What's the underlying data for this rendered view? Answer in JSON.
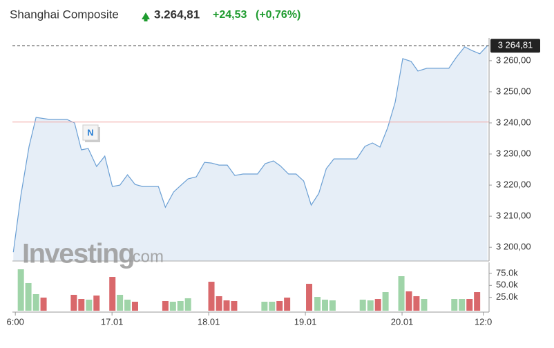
{
  "header": {
    "name": "Shanghai Composite",
    "price": "3.264,81",
    "change": "+24,53",
    "change_pct": "(+0,76%)"
  },
  "watermark": {
    "brand": "Investing",
    "suffix": ".com"
  },
  "chart_data": [
    {
      "type": "line",
      "annotation": "N",
      "xlim": [
        -0.03,
        4.9
      ],
      "ylim": [
        3195.6,
        3267.3
      ],
      "yticks": [
        {
          "value": 3200,
          "label": "3 200,00"
        },
        {
          "value": 3210,
          "label": "3 210,00"
        },
        {
          "value": 3220,
          "label": "3 220,00"
        },
        {
          "value": 3230,
          "label": "3 230,00"
        },
        {
          "value": 3240,
          "label": "3 240,00"
        },
        {
          "value": 3250,
          "label": "3 250,00"
        },
        {
          "value": 3260,
          "label": "3 260,00"
        }
      ],
      "last": {
        "value": 3264.81,
        "label": "3 264,81"
      },
      "prev_close": 3240.28,
      "grid": false,
      "series": [
        {
          "color": "#6a9fd4",
          "fill": "#e6eef7",
          "x": [
            -0.021,
            0.057,
            0.142,
            0.214,
            0.356,
            0.534,
            0.612,
            0.683,
            0.754,
            0.84,
            0.925,
            1.004,
            1.082,
            1.16,
            1.238,
            1.317,
            1.48,
            1.552,
            1.637,
            1.715,
            1.786,
            1.872,
            1.957,
            2.028,
            2.107,
            2.192,
            2.27,
            2.356,
            2.505,
            2.584,
            2.669,
            2.74,
            2.826,
            2.904,
            2.982,
            3.06,
            3.139,
            3.217,
            3.295,
            3.53,
            3.616,
            3.694,
            3.772,
            3.851,
            3.929,
            4.007,
            4.093,
            4.164,
            4.256,
            4.399,
            4.484,
            4.562,
            4.648,
            4.719,
            4.804,
            4.883
          ],
          "values": [
            3198.44,
            3216.67,
            3232.44,
            3241.78,
            3241.11,
            3241.11,
            3240.0,
            3231.33,
            3231.78,
            3226.0,
            3229.33,
            3219.56,
            3220.0,
            3223.33,
            3220.22,
            3219.56,
            3219.56,
            3212.89,
            3217.78,
            3220.0,
            3222.0,
            3222.67,
            3227.33,
            3227.11,
            3226.44,
            3226.44,
            3223.11,
            3223.56,
            3223.56,
            3226.89,
            3227.78,
            3226.22,
            3223.56,
            3223.56,
            3221.33,
            3213.56,
            3217.33,
            3225.33,
            3228.44,
            3228.44,
            3232.44,
            3233.56,
            3232.22,
            3238.44,
            3246.67,
            3260.67,
            3259.78,
            3256.67,
            3257.56,
            3257.56,
            3257.56,
            3261.11,
            3264.44,
            3263.33,
            3262.22,
            3264.81
          ]
        }
      ]
    },
    {
      "type": "bar",
      "xlim": [
        -0.03,
        4.9
      ],
      "ylim": [
        0,
        98
      ],
      "xticks": [
        {
          "value": 0,
          "label": "6:00"
        },
        {
          "value": 1,
          "label": "17.01"
        },
        {
          "value": 2,
          "label": "18.01"
        },
        {
          "value": 3,
          "label": "19.01"
        },
        {
          "value": 4,
          "label": "20.01"
        },
        {
          "value": 4.84,
          "label": "12:0"
        }
      ],
      "yticks": [
        {
          "value": 25,
          "label": "25.0k"
        },
        {
          "value": 50,
          "label": "50.0k"
        },
        {
          "value": 75,
          "label": "75.0k"
        }
      ],
      "x": [
        0.057,
        0.135,
        0.214,
        0.292,
        0.605,
        0.683,
        0.762,
        0.84,
        1.004,
        1.082,
        1.16,
        1.238,
        1.552,
        1.63,
        1.708,
        1.786,
        2.028,
        2.107,
        2.185,
        2.263,
        2.577,
        2.655,
        2.733,
        2.811,
        3.039,
        3.125,
        3.203,
        3.281,
        3.594,
        3.673,
        3.751,
        3.829,
        3.993,
        4.071,
        4.149,
        4.228,
        4.541,
        4.619,
        4.698,
        4.776
      ],
      "values": [
        83.6,
        54.8,
        31.7,
        24.5,
        30.3,
        21.6,
        20.2,
        28.8,
        67.7,
        30.3,
        20.2,
        15.9,
        17.3,
        15.9,
        17.3,
        23.1,
        57.6,
        27.4,
        18.7,
        17.3,
        15.9,
        15.9,
        17.3,
        24.5,
        53.3,
        25.9,
        20.2,
        18.7,
        20.2,
        18.7,
        21.6,
        36.0,
        69.2,
        37.5,
        27.4,
        21.6,
        21.6,
        21.6,
        21.6,
        36.0
      ],
      "colors": [
        "#9fd4a8",
        "#9fd4a8",
        "#9fd4a8",
        "#d9686b",
        "#d9686b",
        "#d9686b",
        "#9fd4a8",
        "#d9686b",
        "#d9686b",
        "#9fd4a8",
        "#9fd4a8",
        "#d9686b",
        "#d9686b",
        "#9fd4a8",
        "#9fd4a8",
        "#9fd4a8",
        "#d9686b",
        "#d9686b",
        "#d9686b",
        "#d9686b",
        "#9fd4a8",
        "#9fd4a8",
        "#d9686b",
        "#d9686b",
        "#d9686b",
        "#9fd4a8",
        "#9fd4a8",
        "#9fd4a8",
        "#9fd4a8",
        "#9fd4a8",
        "#d9686b",
        "#9fd4a8",
        "#9fd4a8",
        "#d9686b",
        "#d9686b",
        "#9fd4a8",
        "#9fd4a8",
        "#9fd4a8",
        "#d9686b",
        "#d9686b"
      ]
    }
  ]
}
